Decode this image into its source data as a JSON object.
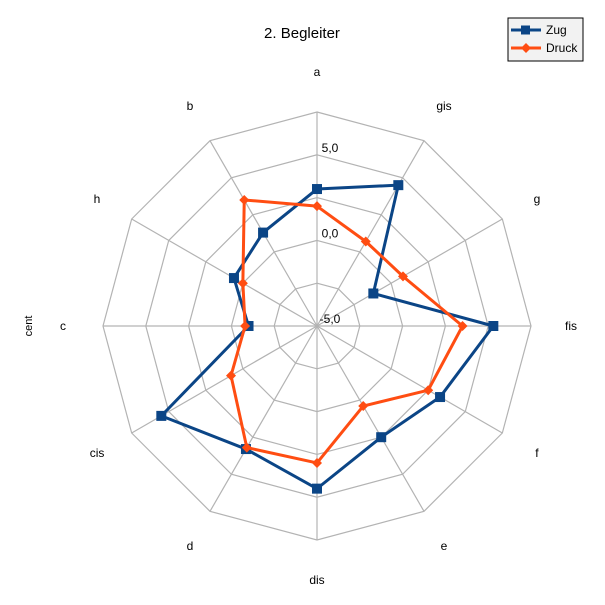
{
  "chart_data": {
    "type": "radar",
    "title": "2. Begleiter",
    "unit_label": "cent",
    "categories": [
      "a",
      "gis",
      "g",
      "fis",
      "f",
      "e",
      "dis",
      "d",
      "cis",
      "c",
      "h",
      "b"
    ],
    "rlim": [
      -5,
      7.5
    ],
    "ticks": [
      {
        "value": 5,
        "label": "5,0"
      },
      {
        "value": 0,
        "label": "0,0"
      },
      {
        "value": -5,
        "label": "-5,0"
      }
    ],
    "grid": true,
    "legend_position": "top-right",
    "series": [
      {
        "name": "Zug",
        "color": "#0b4586",
        "marker": "square",
        "values": [
          3.0,
          4.5,
          -1.2,
          5.3,
          3.3,
          2.5,
          4.5,
          3.3,
          5.5,
          -1.0,
          0.6,
          1.3
        ]
      },
      {
        "name": "Druck",
        "color": "#ff4d12",
        "marker": "diamond",
        "values": [
          2.0,
          0.7,
          0.8,
          3.5,
          2.5,
          0.4,
          3.0,
          3.2,
          0.8,
          -0.8,
          0.0,
          3.5
        ]
      }
    ]
  }
}
